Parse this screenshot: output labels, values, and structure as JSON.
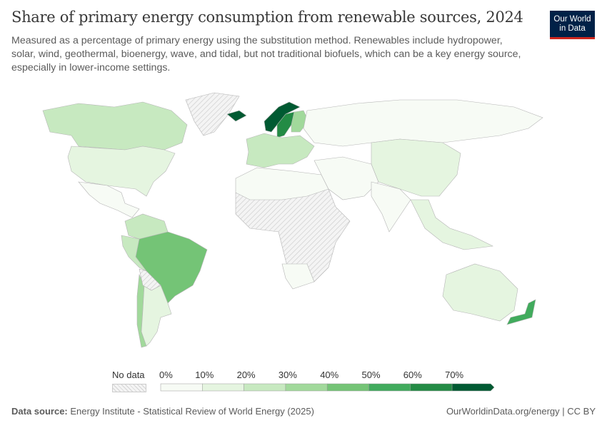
{
  "header": {
    "title": "Share of primary energy consumption from renewable sources, 2024",
    "subtitle": "Measured as a percentage of primary energy using the substitution method. Renewables include hydropower, solar, wind, geothermal, bioenergy, wave, and tidal, but not traditional biofuels, which can be a key energy source, especially in lower-income settings.",
    "logo": "Our World in Data"
  },
  "legend": {
    "no_data_label": "No data",
    "ticks": [
      "0%",
      "10%",
      "20%",
      "30%",
      "40%",
      "50%",
      "60%",
      "70%"
    ],
    "bins": [
      "#f7fbf5",
      "#e5f5e0",
      "#c7e9c0",
      "#a1d99b",
      "#74c476",
      "#41ab5d",
      "#238b45",
      "#005a32"
    ],
    "no_data_color": "#e9e9e9"
  },
  "map": {
    "regions": [
      {
        "name": "Canada",
        "bin": 2
      },
      {
        "name": "United States",
        "bin": 1
      },
      {
        "name": "Mexico",
        "bin": 0
      },
      {
        "name": "Greenland",
        "bin": null
      },
      {
        "name": "Brazil",
        "bin": 4
      },
      {
        "name": "Colombia/Venezuela",
        "bin": 2
      },
      {
        "name": "Peru",
        "bin": 2
      },
      {
        "name": "Chile",
        "bin": 3
      },
      {
        "name": "Argentina",
        "bin": 1
      },
      {
        "name": "Bolivia",
        "bin": null
      },
      {
        "name": "Norway",
        "bin": 7
      },
      {
        "name": "Sweden",
        "bin": 6
      },
      {
        "name": "Finland",
        "bin": 3
      },
      {
        "name": "Iceland",
        "bin": 7
      },
      {
        "name": "Western Europe",
        "bin": 2
      },
      {
        "name": "Africa",
        "bin": null
      },
      {
        "name": "North Africa",
        "bin": 0
      },
      {
        "name": "South Africa",
        "bin": 0
      },
      {
        "name": "Russia",
        "bin": 0
      },
      {
        "name": "Middle East",
        "bin": 0
      },
      {
        "name": "China",
        "bin": 1
      },
      {
        "name": "India",
        "bin": 0
      },
      {
        "name": "Southeast Asia",
        "bin": 1
      },
      {
        "name": "Australia",
        "bin": 1
      },
      {
        "name": "New Zealand",
        "bin": 5
      }
    ]
  },
  "footer": {
    "source_label": "Data source:",
    "source": "Energy Institute - Statistical Review of World Energy (2025)",
    "right": "OurWorldinData.org/energy | CC BY"
  }
}
